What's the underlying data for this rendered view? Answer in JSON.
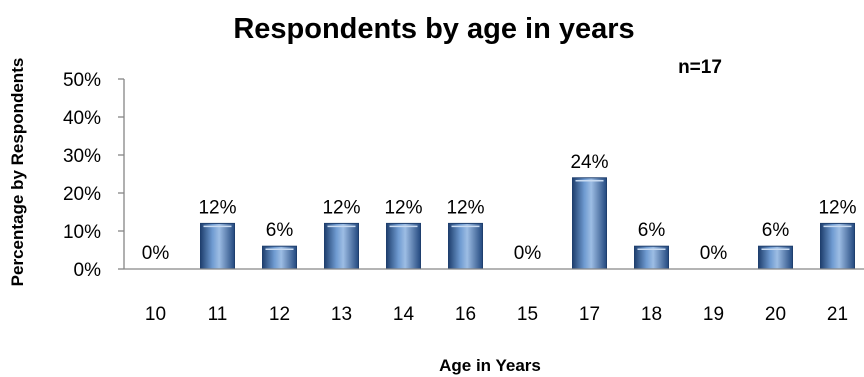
{
  "chart_data": {
    "type": "bar",
    "title": "Respondents by age in years",
    "annotation": "n=17",
    "xlabel": "Age in Years",
    "ylabel": "Percentage by Respondents",
    "categories": [
      "10",
      "11",
      "12",
      "13",
      "14",
      "16",
      "15",
      "17",
      "18",
      "19",
      "20",
      "21"
    ],
    "values": [
      0,
      12,
      6,
      12,
      12,
      12,
      0,
      24,
      6,
      0,
      6,
      12
    ],
    "data_labels": [
      "0%",
      "12%",
      "6%",
      "12%",
      "12%",
      "12%",
      "0%",
      "24%",
      "6%",
      "0%",
      "6%",
      "12%"
    ],
    "ylim": [
      0,
      50
    ],
    "yticks": [
      0,
      10,
      20,
      30,
      40,
      50
    ],
    "ytick_labels": [
      "0%",
      "10%",
      "20%",
      "30%",
      "40%",
      "50%"
    ],
    "grid": false,
    "legend": "none",
    "bar_color": "#4f81bd"
  }
}
